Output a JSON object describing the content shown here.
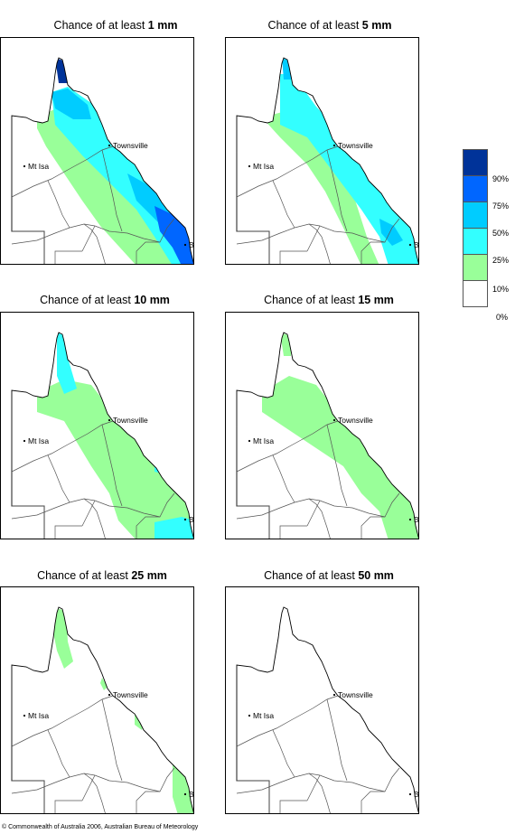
{
  "panels": [
    {
      "title_prefix": "Chance of at least ",
      "title_amount": "1 mm",
      "cities": {
        "townsville": "Townsville",
        "mtisa": "Mt Isa",
        "bris": "BRIS"
      }
    },
    {
      "title_prefix": "Chance of at least ",
      "title_amount": "5 mm",
      "cities": {
        "townsville": "Townsville",
        "mtisa": "Mt Isa",
        "bris": "BRIS"
      }
    },
    {
      "title_prefix": "Chance of at least ",
      "title_amount": "10 mm",
      "cities": {
        "townsville": "Townsville",
        "mtisa": "Mt Isa",
        "bris": "BRIS"
      }
    },
    {
      "title_prefix": "Chance of at least ",
      "title_amount": "15 mm",
      "cities": {
        "townsville": "Townsville",
        "mtisa": "Mt Isa",
        "bris": "BRIS"
      }
    },
    {
      "title_prefix": "Chance of at least ",
      "title_amount": "25 mm",
      "cities": {
        "townsville": "Townsville",
        "mtisa": "Mt Isa",
        "bris": "BRIS"
      }
    },
    {
      "title_prefix": "Chance of at least ",
      "title_amount": "50 mm",
      "cities": {
        "townsville": "Townsville",
        "mtisa": "Mt Isa",
        "bris": "BRIS"
      }
    }
  ],
  "legend": {
    "labels": [
      "90%",
      "75%",
      "50%",
      "25%",
      "10%",
      "0%"
    ],
    "colors": [
      "#003399",
      "#0066ff",
      "#00ccff",
      "#33ffff",
      "#99ff99",
      "#ffffff"
    ]
  },
  "footer": "© Commonwealth of Australia 2006, Australian Bureau of Meteorology"
}
